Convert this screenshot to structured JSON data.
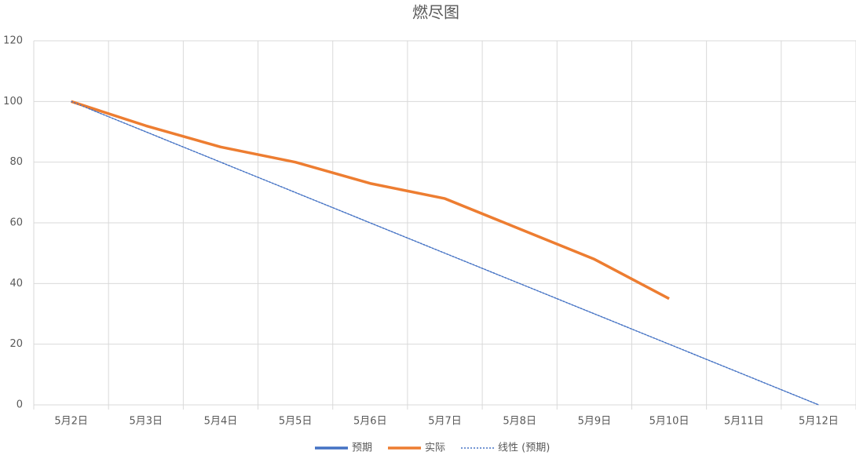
{
  "chart_data": {
    "type": "line",
    "title": "燃尽图",
    "categories": [
      "5月2日",
      "5月3日",
      "5月4日",
      "5月5日",
      "5月6日",
      "5月7日",
      "5月8日",
      "5月9日",
      "5月10日",
      "5月11日",
      "5月12日"
    ],
    "series": [
      {
        "name": "预期",
        "color": "#4472c4",
        "values": [
          100,
          90,
          80,
          70,
          60,
          50,
          40,
          30,
          20,
          10,
          0
        ]
      },
      {
        "name": "实际",
        "color": "#ed7d31",
        "values": [
          100,
          92,
          85,
          80,
          73,
          68,
          58,
          48,
          35,
          null,
          null
        ]
      },
      {
        "name": "线性 (预期)",
        "color": "#4472c4",
        "style": "dotted",
        "values": [
          100,
          90,
          80,
          70,
          60,
          50,
          40,
          30,
          20,
          10,
          0
        ]
      }
    ],
    "ylim": [
      0,
      120
    ],
    "yticks": [
      0,
      20,
      40,
      60,
      80,
      100,
      120
    ],
    "grid": true,
    "legend": "bottom"
  }
}
